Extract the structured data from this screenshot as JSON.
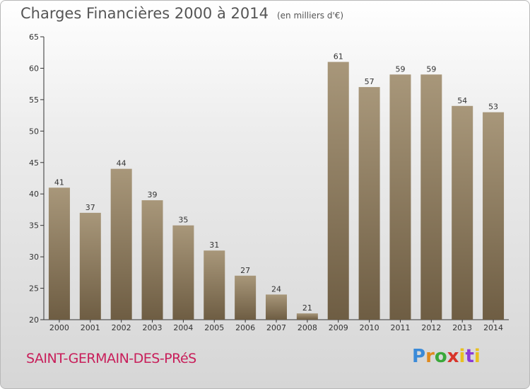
{
  "header": {
    "title": "Charges Financières 2000 à 2014",
    "unit": "(en milliers d'€)"
  },
  "commune": "SAINT-GERMAIN-DES-PRéS",
  "logo": {
    "letters": [
      "P",
      "r",
      "o",
      "x",
      "i",
      "t",
      "i"
    ]
  },
  "colors": {
    "bar_top": "#a8977a",
    "bar_bottom": "#6e5d43",
    "commune": "#c81e5a"
  },
  "chart_data": {
    "type": "bar",
    "categories": [
      "2000",
      "2001",
      "2002",
      "2003",
      "2004",
      "2005",
      "2006",
      "2007",
      "2008",
      "2009",
      "2010",
      "2011",
      "2012",
      "2013",
      "2014"
    ],
    "values": [
      41,
      37,
      44,
      39,
      35,
      31,
      27,
      24,
      21,
      61,
      57,
      59,
      59,
      54,
      53
    ],
    "ylim": [
      20,
      65
    ],
    "yticks": [
      20,
      25,
      30,
      35,
      40,
      45,
      50,
      55,
      60,
      65
    ],
    "grid": false,
    "legend": "none"
  }
}
